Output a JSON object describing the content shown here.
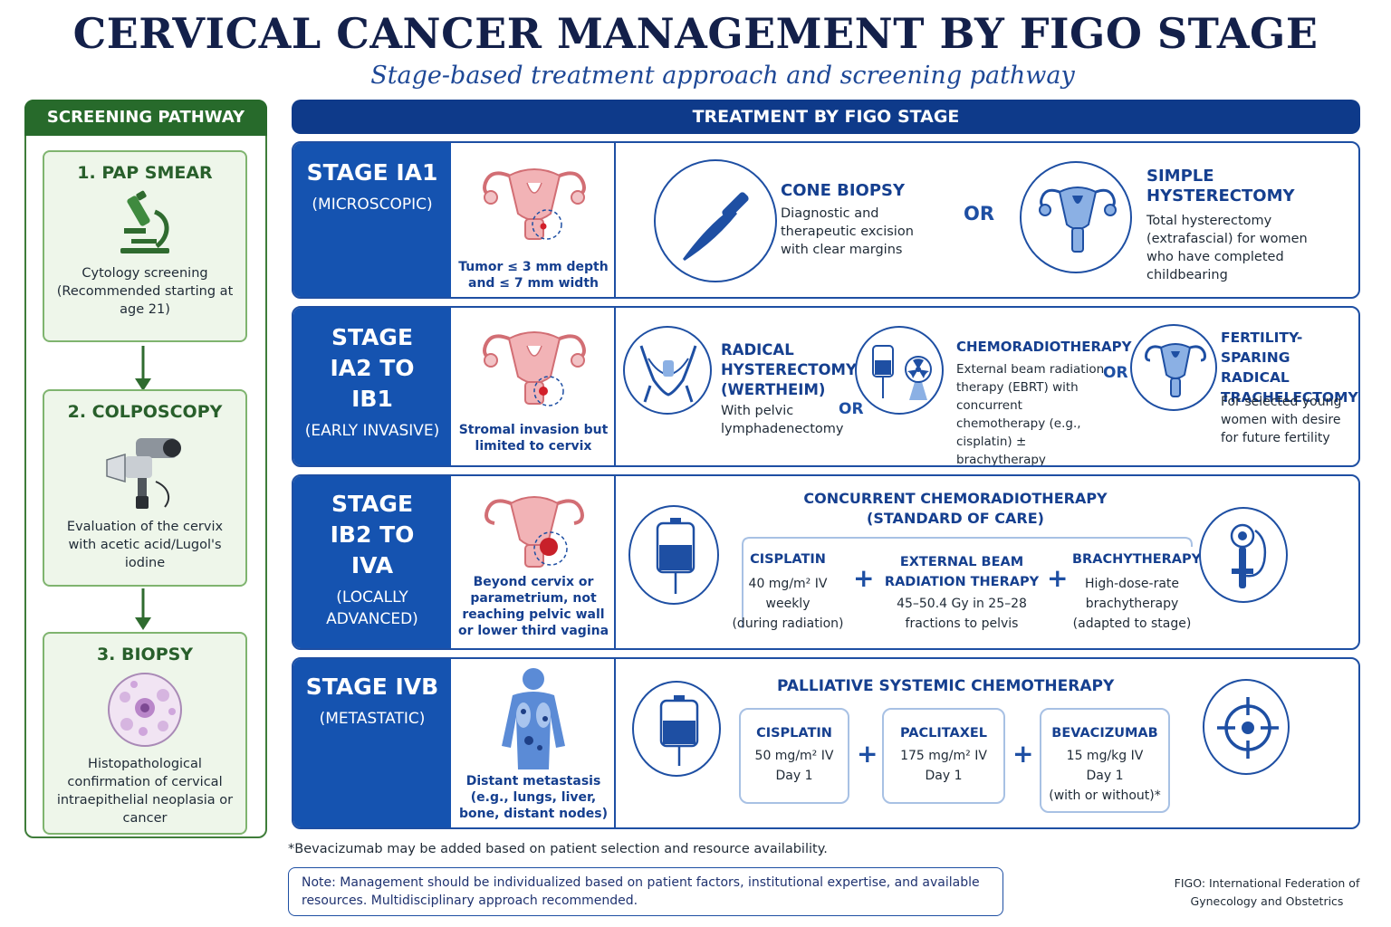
{
  "title": "CERVICAL CANCER MANAGEMENT BY FIGO STAGE",
  "subtitle": "Stage-based treatment approach and screening pathway",
  "screening": {
    "header": "SCREENING PATHWAY",
    "steps": [
      {
        "title": "1. PAP SMEAR",
        "icon": "microscope-icon",
        "desc": "Cytology screening (Recommended starting at age 21)"
      },
      {
        "title": "2. COLPOSCOPY",
        "icon": "colposcope-icon",
        "desc": "Evaluation of the cervix with acetic acid/Lugol's iodine"
      },
      {
        "title": "3. BIOPSY",
        "icon": "tissue-sample-icon",
        "desc": "Histopathological confirmation of cervical intraepithelial neoplasia or cancer"
      }
    ]
  },
  "treatment_header": "TREATMENT BY FIGO STAGE",
  "stages": [
    {
      "name": "STAGE IA1",
      "sub": "(MICROSCOPIC)",
      "caption": "Tumor ≤ 3 mm depth and ≤ 7 mm width",
      "opt1": {
        "title": "CONE BIOPSY",
        "text": "Diagnostic and therapeutic excision with clear margins"
      },
      "or": "OR",
      "opt2": {
        "title": "SIMPLE HYSTERECTOMY",
        "text": "Total hysterectomy (extrafascial) for women who have completed childbearing"
      }
    },
    {
      "name": "STAGE IA2 TO IB1",
      "sub": "(EARLY INVASIVE)",
      "caption": "Stromal invasion but limited to cervix",
      "opt1": {
        "title": "RADICAL HYSTERECTOMY (WERTHEIM)",
        "text": "With pelvic lymphadenectomy"
      },
      "or1": "OR",
      "opt2": {
        "title": "CHEMORADIOTHERAPY",
        "text": "External beam radiation therapy (EBRT) with concurrent chemotherapy (e.g., cisplatin) ± brachytherapy"
      },
      "or2": "OR",
      "opt3": {
        "title": "FERTILITY-SPARING RADICAL TRACHELECTOMY",
        "text": "For selected young women with desire for future fertility"
      }
    },
    {
      "name": "STAGE IB2 TO IVA",
      "sub": "(LOCALLY ADVANCED)",
      "caption": "Beyond cervix or parametrium, not reaching pelvic wall or lower third vagina",
      "heading": "CONCURRENT CHEMORADIOTHERAPY (STANDARD OF CARE)",
      "components": [
        {
          "name": "CISPLATIN",
          "lines": [
            "40 mg/m² IV",
            "weekly",
            "(during radiation)"
          ]
        },
        {
          "name": "EXTERNAL BEAM RADIATION THERAPY",
          "lines": [
            "45–50.4 Gy in 25–28",
            "fractions to pelvis"
          ]
        },
        {
          "name": "BRACHYTHERAPY",
          "lines": [
            "High-dose-rate",
            "brachytherapy",
            "(adapted to stage)"
          ]
        }
      ]
    },
    {
      "name": "STAGE IVB",
      "sub": "(METASTATIC)",
      "caption": "Distant metastasis (e.g., lungs, liver, bone, distant nodes)",
      "heading": "PALLIATIVE SYSTEMIC CHEMOTHERAPY",
      "drugs": [
        {
          "name": "CISPLATIN",
          "lines": [
            "50 mg/m² IV",
            "Day 1"
          ]
        },
        {
          "name": "PACLITAXEL",
          "lines": [
            "175 mg/m² IV",
            "Day 1"
          ]
        },
        {
          "name": "BEVACIZUMAB",
          "lines": [
            "15 mg/kg IV",
            "Day 1",
            "(with or without)*"
          ]
        }
      ]
    }
  ],
  "plus_sign": "+",
  "footnote": "*Bevacizumab may be added based on patient selection and resource availability.",
  "note": "Note: Management should be individualized based on patient factors, institutional expertise, and available resources. Multidisciplinary approach recommended.",
  "figo_definition": "FIGO: International Federation of Gynecology and Obstetrics",
  "colors": {
    "navy": "#0e3a8a",
    "stage_blue": "#1553b0",
    "green": "#276a2b",
    "light_green": "#eef6ea"
  }
}
